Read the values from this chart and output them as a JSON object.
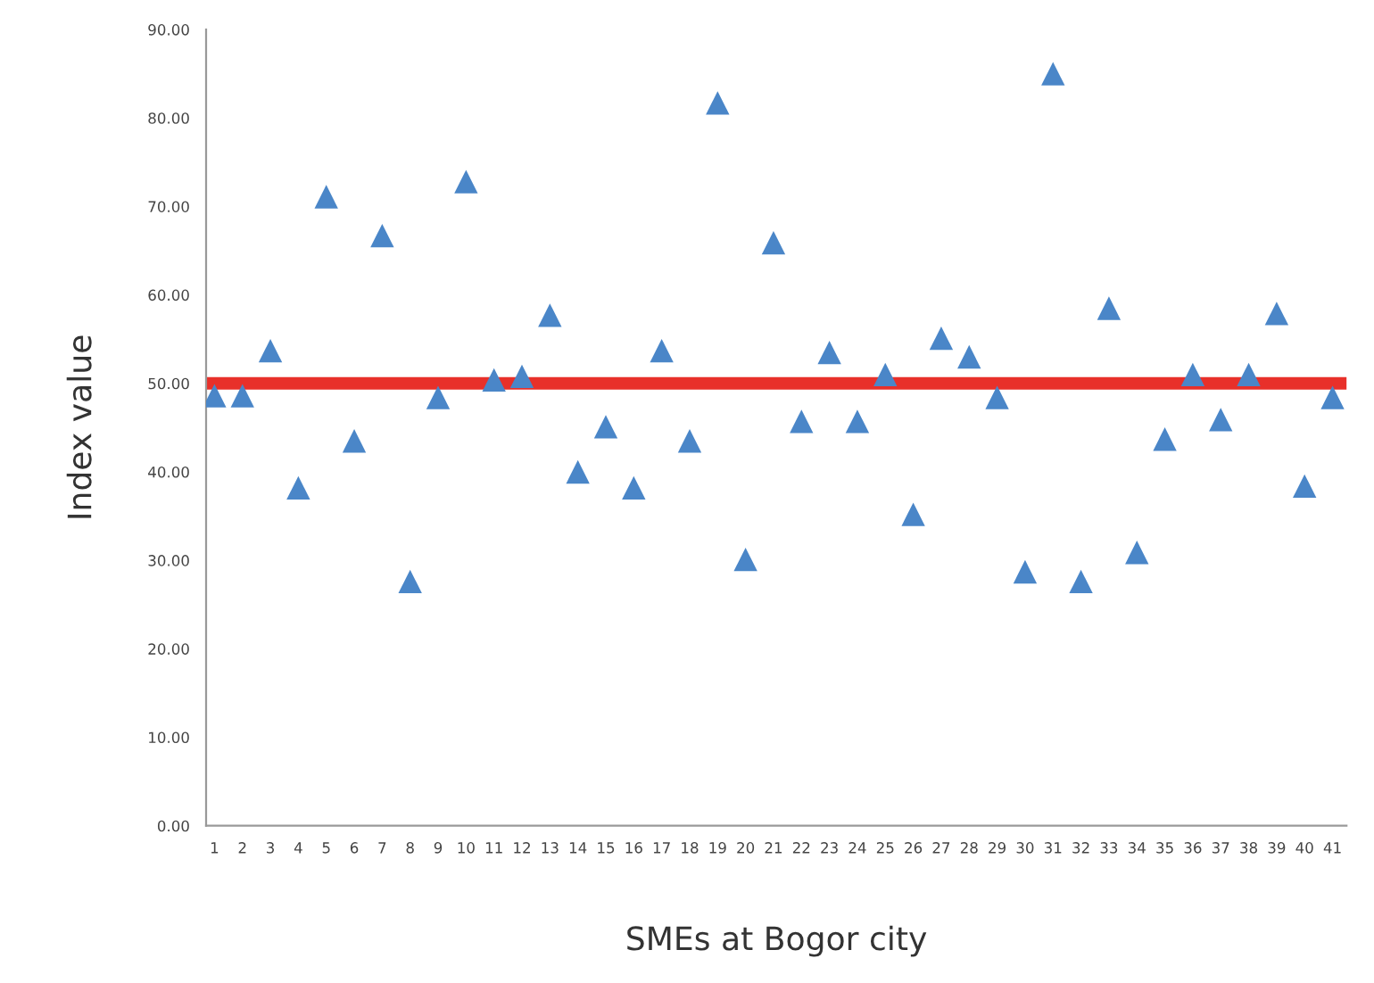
{
  "chart_data": {
    "type": "scatter",
    "xlabel": "SMEs at Bogor city",
    "ylabel": "Index value",
    "categories": [
      "1",
      "2",
      "3",
      "4",
      "5",
      "6",
      "7",
      "8",
      "9",
      "10",
      "11",
      "12",
      "13",
      "14",
      "15",
      "16",
      "17",
      "18",
      "19",
      "20",
      "21",
      "22",
      "23",
      "24",
      "25",
      "26",
      "27",
      "28",
      "29",
      "30",
      "31",
      "32",
      "33",
      "34",
      "35",
      "36",
      "37",
      "38",
      "39",
      "40",
      "41"
    ],
    "series": [
      {
        "color": "#4a86c8",
        "values": [
          48.6,
          48.6,
          53.7,
          38.2,
          71.1,
          43.5,
          66.7,
          27.6,
          48.4,
          72.8,
          50.4,
          50.8,
          57.7,
          40.0,
          45.1,
          38.2,
          53.7,
          43.5,
          81.7,
          30.1,
          65.9,
          45.7,
          53.5,
          45.7,
          51.0,
          35.2,
          55.1,
          53.0,
          48.4,
          28.7,
          85.0,
          27.6,
          58.5,
          30.9,
          43.7,
          51.0,
          45.9,
          51.0,
          57.9,
          38.4,
          48.4
        ]
      }
    ],
    "ylim": [
      0,
      90
    ],
    "yticks": [
      {
        "value": 0,
        "label": "0.00"
      },
      {
        "value": 10,
        "label": "10.00"
      },
      {
        "value": 20,
        "label": "20.00"
      },
      {
        "value": 30,
        "label": "30.00"
      },
      {
        "value": 40,
        "label": "40.00"
      },
      {
        "value": 50,
        "label": "50.00"
      },
      {
        "value": 60,
        "label": "60.00"
      },
      {
        "value": 70,
        "label": "70.00"
      },
      {
        "value": 80,
        "label": "80.00"
      },
      {
        "value": 90,
        "label": "90.00"
      }
    ],
    "ref_lines": [
      {
        "axis": "y",
        "value": 50,
        "color": "#e8302a"
      }
    ],
    "marker": "triangle",
    "grid": false,
    "legend": false
  }
}
